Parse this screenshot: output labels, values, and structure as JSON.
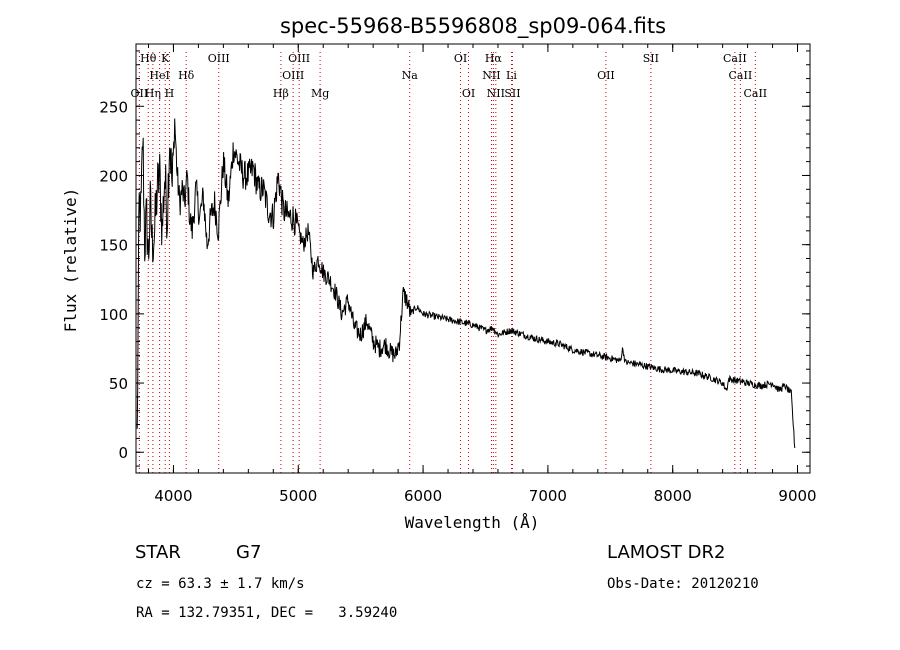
{
  "chart_data": {
    "type": "line",
    "title": "spec-55968-B5596808_sp09-064.fits",
    "xlabel": "Wavelength (Å)",
    "ylabel": "Flux (relative)",
    "xlim": [
      3700,
      9100
    ],
    "ylim": [
      -15,
      295
    ],
    "xticks": [
      4000,
      5000,
      6000,
      7000,
      8000,
      9000
    ],
    "yticks": [
      0,
      50,
      100,
      150,
      200,
      250
    ],
    "grid": false,
    "line_color": "#000000",
    "marker_color": "#cc0000",
    "spectrum_anchors": {
      "x": [
        3710,
        3725,
        3740,
        3755,
        3770,
        3785,
        3800,
        3815,
        3830,
        3850,
        3870,
        3890,
        3910,
        3930,
        3950,
        3970,
        3990,
        4010,
        4030,
        4050,
        4070,
        4090,
        4110,
        4130,
        4150,
        4180,
        4210,
        4240,
        4270,
        4300,
        4330,
        4360,
        4400,
        4440,
        4480,
        4520,
        4560,
        4600,
        4640,
        4680,
        4720,
        4760,
        4800,
        4840,
        4880,
        4920,
        4960,
        5000,
        5040,
        5080,
        5120,
        5160,
        5200,
        5250,
        5300,
        5350,
        5400,
        5450,
        5500,
        5550,
        5600,
        5650,
        5700,
        5740,
        5780,
        5810,
        5840,
        5870,
        5900,
        5950,
        6000,
        6100,
        6200,
        6300,
        6400,
        6500,
        6560,
        6600,
        6700,
        6800,
        6900,
        7000,
        7100,
        7200,
        7300,
        7400,
        7500,
        7580,
        7600,
        7620,
        7700,
        7800,
        7900,
        8000,
        8100,
        8200,
        8300,
        8400,
        8430,
        8450,
        8500,
        8600,
        8700,
        8800,
        8850,
        8900,
        8950,
        8980
      ],
      "y": [
        10,
        180,
        170,
        230,
        150,
        170,
        140,
        180,
        150,
        160,
        190,
        200,
        160,
        200,
        170,
        230,
        190,
        240,
        200,
        180,
        190,
        180,
        200,
        170,
        160,
        190,
        170,
        185,
        150,
        170,
        180,
        160,
        210,
        180,
        220,
        210,
        200,
        200,
        205,
        190,
        190,
        175,
        170,
        200,
        175,
        170,
        170,
        160,
        150,
        160,
        130,
        140,
        130,
        125,
        115,
        100,
        110,
        90,
        85,
        95,
        80,
        75,
        78,
        72,
        70,
        80,
        115,
        110,
        100,
        105,
        100,
        98,
        96,
        94,
        92,
        88,
        90,
        85,
        88,
        85,
        82,
        80,
        78,
        74,
        72,
        70,
        68,
        66,
        75,
        65,
        64,
        62,
        60,
        59,
        58,
        57,
        54,
        50,
        45,
        53,
        52,
        50,
        48,
        50,
        45,
        48,
        42,
        0
      ]
    },
    "spectral_lines": [
      {
        "label": "Hθ",
        "x": 3798,
        "tier": 1
      },
      {
        "label": "K",
        "x": 3934,
        "tier": 1
      },
      {
        "label": "OIII",
        "x": 4363,
        "tier": 1
      },
      {
        "label": "OIII",
        "x": 5007,
        "tier": 1
      },
      {
        "label": "OI",
        "x": 6300,
        "tier": 1
      },
      {
        "label": "Hα",
        "x": 6563,
        "tier": 1
      },
      {
        "label": "SII",
        "x": 7825,
        "tier": 1
      },
      {
        "label": "CaII",
        "x": 8498,
        "tier": 1
      },
      {
        "label": "HeI",
        "x": 3889,
        "tier": 2
      },
      {
        "label": "Hδ",
        "x": 4102,
        "tier": 2
      },
      {
        "label": "OIII",
        "x": 4959,
        "tier": 2
      },
      {
        "label": "Na",
        "x": 5893,
        "tier": 2
      },
      {
        "label": "NII",
        "x": 6548,
        "tier": 2
      },
      {
        "label": "Li",
        "x": 6708,
        "tier": 2
      },
      {
        "label": "OII",
        "x": 7465,
        "tier": 2
      },
      {
        "label": "CaII",
        "x": 8542,
        "tier": 2
      },
      {
        "label": "OII",
        "x": 3727,
        "tier": 3
      },
      {
        "label": "Hη",
        "x": 3835,
        "tier": 3
      },
      {
        "label": "H",
        "x": 3968,
        "tier": 3
      },
      {
        "label": "Hβ",
        "x": 4861,
        "tier": 3
      },
      {
        "label": "Mg",
        "x": 5175,
        "tier": 3
      },
      {
        "label": "OI",
        "x": 6364,
        "tier": 3
      },
      {
        "label": "NII",
        "x": 6583,
        "tier": 3
      },
      {
        "label": "SII",
        "x": 6716,
        "tier": 3
      },
      {
        "label": "CaII",
        "x": 8662,
        "tier": 3
      }
    ]
  },
  "info": {
    "object_class": "STAR",
    "subclass": "G7",
    "survey": "LAMOST DR2",
    "redshift_text": "cz = 63.3 ± 1.7 km/s",
    "obs_date": "Obs-Date: 20120210",
    "coords": "RA = 132.79351, DEC =   3.59240"
  }
}
